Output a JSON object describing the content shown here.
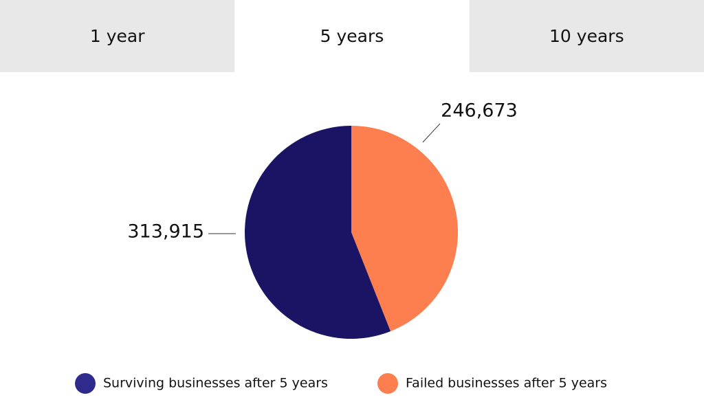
{
  "tabs": {
    "items": [
      "1 year",
      "5 years",
      "10 years"
    ],
    "selected": 1
  },
  "chart_data": {
    "type": "pie",
    "categories": [
      "Failed businesses after 5 years",
      "Surviving businesses after 5 years"
    ],
    "values": [
      246673,
      313915
    ],
    "value_labels": [
      "246,673",
      "313,915"
    ],
    "colors": [
      "#fd7e4f",
      "#1b1464"
    ],
    "legend_colors": [
      "#fd7e4f",
      "#2f2b8c"
    ]
  }
}
